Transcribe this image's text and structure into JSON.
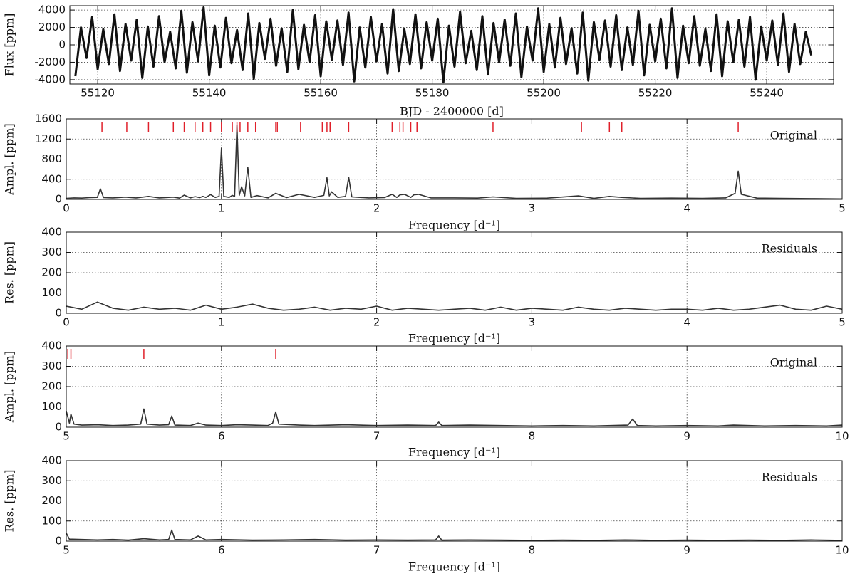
{
  "chart_data": [
    {
      "type": "line",
      "ylabel": "Flux [ppm]",
      "xlabel": "BJD - 2400000 [d]",
      "color": "#111111",
      "grid": true,
      "xlim": [
        55115,
        55252
      ],
      "ylim": [
        -4500,
        4500
      ],
      "xticks": [
        55120,
        55140,
        55160,
        55180,
        55200,
        55220,
        55240
      ],
      "yticks": [
        -4000,
        -2000,
        0,
        2000,
        4000
      ],
      "x": [
        55116,
        55117,
        55118,
        55119,
        55120,
        55121,
        55122,
        55123,
        55124,
        55125,
        55126,
        55127,
        55128,
        55129,
        55130,
        55131,
        55132,
        55133,
        55134,
        55135,
        55136,
        55137,
        55138,
        55139,
        55140,
        55141,
        55142,
        55143,
        55144,
        55145,
        55146,
        55147,
        55148,
        55149,
        55150,
        55151,
        55152,
        55153,
        55154,
        55155,
        55156,
        55157,
        55158,
        55159,
        55160,
        55161,
        55162,
        55163,
        55164,
        55165,
        55166,
        55167,
        55168,
        55169,
        55170,
        55171,
        55172,
        55173,
        55174,
        55175,
        55176,
        55177,
        55178,
        55179,
        55180,
        55181,
        55182,
        55183,
        55184,
        55185,
        55186,
        55187,
        55188,
        55189,
        55190,
        55191,
        55192,
        55193,
        55194,
        55195,
        55196,
        55197,
        55198,
        55199,
        55200,
        55201,
        55202,
        55203,
        55204,
        55205,
        55206,
        55207,
        55208,
        55209,
        55210,
        55211,
        55212,
        55213,
        55214,
        55215,
        55216,
        55217,
        55218,
        55219,
        55220,
        55221,
        55222,
        55223,
        55224,
        55225,
        55226,
        55227,
        55228,
        55229,
        55230,
        55231,
        55232,
        55233,
        55234,
        55235,
        55236,
        55237,
        55238,
        55239,
        55240,
        55241,
        55242,
        55243,
        55244,
        55245,
        55246,
        55247,
        55248
      ],
      "values": [
        -3600,
        2000,
        -1500,
        3200,
        -2800,
        1800,
        -2200,
        3500,
        -3000,
        2400,
        -1800,
        2900,
        -3800,
        2100,
        -2500,
        3300,
        -2000,
        1500,
        -2700,
        3900,
        -3200,
        2600,
        -1900,
        4300,
        -3500,
        2200,
        -2600,
        3100,
        -2100,
        1700,
        -2900,
        3600,
        -3900,
        2500,
        -1600,
        3000,
        -2400,
        1900,
        -3100,
        4000,
        -2800,
        2300,
        -2000,
        3400,
        -3600,
        2700,
        -1700,
        2800,
        -2300,
        3700,
        -4200,
        2000,
        -2600,
        3200,
        -1900,
        2400,
        -3300,
        4100,
        -3000,
        1800,
        -2200,
        3500,
        -2700,
        2600,
        -1800,
        3000,
        -4300,
        2200,
        -2500,
        3800,
        -2100,
        1600,
        -2900,
        3300,
        -3400,
        2500,
        -2000,
        2900,
        -2400,
        3600,
        -3700,
        2100,
        -1800,
        4200,
        -3100,
        2400,
        -2600,
        3100,
        -2200,
        1900,
        -3300,
        3700,
        -4100,
        2600,
        -1700,
        2800,
        -2500,
        3400,
        -2900,
        2000,
        -2300,
        3900,
        -3500,
        2300,
        -1900,
        3000,
        -2700,
        4200,
        -3800,
        2200,
        -2100,
        3300,
        -2400,
        1800,
        -3000,
        3500,
        -3600,
        2700,
        -2000,
        2900,
        -2500,
        3200,
        -4000,
        2100,
        -1800,
        2800,
        -2300,
        3600,
        -3100,
        2400,
        -2200,
        1500,
        -1200
      ]
    },
    {
      "type": "line",
      "ylabel": "Ampl. [ppm]",
      "xlabel": "Frequency [d⁻¹]",
      "annotation": "Original",
      "color": "#333333",
      "grid": true,
      "xlim": [
        0,
        5
      ],
      "ylim": [
        0,
        1600
      ],
      "xticks": [
        0,
        1,
        2,
        3,
        4,
        5
      ],
      "yticks": [
        0,
        400,
        800,
        1200,
        1600
      ],
      "x": [
        0,
        0.05,
        0.1,
        0.15,
        0.2,
        0.22,
        0.24,
        0.3,
        0.38,
        0.45,
        0.53,
        0.6,
        0.69,
        0.73,
        0.76,
        0.8,
        0.83,
        0.86,
        0.88,
        0.9,
        0.93,
        0.96,
        0.985,
        1.0,
        1.015,
        1.05,
        1.07,
        1.085,
        1.1,
        1.115,
        1.13,
        1.15,
        1.17,
        1.19,
        1.23,
        1.3,
        1.35,
        1.42,
        1.5,
        1.6,
        1.66,
        1.68,
        1.695,
        1.71,
        1.75,
        1.8,
        1.82,
        1.84,
        1.95,
        2.05,
        2.1,
        2.13,
        2.15,
        2.18,
        2.22,
        2.24,
        2.27,
        2.35,
        2.5,
        2.65,
        2.75,
        2.9,
        3.1,
        3.3,
        3.4,
        3.5,
        3.58,
        3.7,
        3.9,
        4.1,
        4.25,
        4.31,
        4.33,
        4.35,
        4.45,
        4.6,
        4.8,
        5.0
      ],
      "values": [
        20,
        30,
        25,
        35,
        40,
        210,
        35,
        30,
        45,
        30,
        60,
        30,
        45,
        25,
        85,
        30,
        55,
        35,
        60,
        40,
        95,
        40,
        60,
        1020,
        60,
        40,
        80,
        60,
        1480,
        80,
        250,
        70,
        640,
        40,
        75,
        30,
        120,
        35,
        100,
        40,
        80,
        430,
        70,
        150,
        40,
        60,
        440,
        50,
        30,
        35,
        100,
        40,
        90,
        100,
        40,
        90,
        100,
        30,
        30,
        25,
        50,
        20,
        25,
        70,
        20,
        60,
        40,
        20,
        25,
        20,
        30,
        120,
        560,
        100,
        25,
        20,
        15,
        10
      ],
      "markers": [
        0.23,
        0.39,
        0.53,
        0.69,
        0.76,
        0.83,
        0.88,
        0.93,
        1.0,
        1.07,
        1.1,
        1.12,
        1.17,
        1.22,
        1.35,
        1.36,
        1.51,
        1.65,
        1.68,
        1.7,
        1.82,
        2.1,
        2.15,
        2.17,
        2.22,
        2.26,
        2.75,
        3.32,
        3.5,
        3.58,
        4.33
      ],
      "marker_color": "#e0202a"
    },
    {
      "type": "line",
      "ylabel": "Res. [ppm]",
      "xlabel": "Frequency [d⁻¹]",
      "annotation": "Residuals",
      "color": "#333333",
      "grid": true,
      "xlim": [
        0,
        5
      ],
      "ylim": [
        0,
        400
      ],
      "xticks": [
        0,
        1,
        2,
        3,
        4,
        5
      ],
      "yticks": [
        0,
        100,
        200,
        300,
        400
      ],
      "x": [
        0,
        0.1,
        0.2,
        0.3,
        0.4,
        0.5,
        0.6,
        0.7,
        0.8,
        0.9,
        1.0,
        1.1,
        1.2,
        1.3,
        1.4,
        1.5,
        1.6,
        1.7,
        1.8,
        1.9,
        2.0,
        2.1,
        2.2,
        2.3,
        2.4,
        2.5,
        2.6,
        2.7,
        2.8,
        2.9,
        3.0,
        3.1,
        3.2,
        3.3,
        3.4,
        3.5,
        3.6,
        3.7,
        3.8,
        3.9,
        4.0,
        4.1,
        4.2,
        4.3,
        4.4,
        4.5,
        4.6,
        4.7,
        4.8,
        4.9,
        5.0
      ],
      "values": [
        35,
        20,
        55,
        25,
        15,
        30,
        20,
        25,
        15,
        40,
        20,
        30,
        45,
        25,
        15,
        20,
        30,
        15,
        25,
        20,
        35,
        15,
        25,
        20,
        15,
        20,
        25,
        15,
        30,
        15,
        25,
        20,
        15,
        30,
        20,
        15,
        25,
        20,
        15,
        20,
        20,
        15,
        25,
        15,
        20,
        30,
        40,
        20,
        15,
        35,
        20
      ]
    },
    {
      "type": "line",
      "ylabel": "Ampl. [ppm]",
      "xlabel": "Frequency [d⁻¹]",
      "annotation": "Original",
      "color": "#333333",
      "grid": true,
      "xlim": [
        5,
        10
      ],
      "ylim": [
        0,
        400
      ],
      "xticks": [
        5,
        6,
        7,
        8,
        9,
        10
      ],
      "yticks": [
        0,
        100,
        200,
        300,
        400
      ],
      "x": [
        5.0,
        5.02,
        5.03,
        5.05,
        5.1,
        5.2,
        5.3,
        5.4,
        5.48,
        5.5,
        5.52,
        5.6,
        5.66,
        5.68,
        5.7,
        5.8,
        5.85,
        5.9,
        6.0,
        6.1,
        6.2,
        6.3,
        6.33,
        6.35,
        6.37,
        6.5,
        6.6,
        6.8,
        7.0,
        7.2,
        7.38,
        7.4,
        7.42,
        7.6,
        7.8,
        8.0,
        8.2,
        8.4,
        8.62,
        8.65,
        8.68,
        8.8,
        9.0,
        9.2,
        9.3,
        9.5,
        9.7,
        9.9,
        10.0
      ],
      "values": [
        80,
        20,
        65,
        15,
        10,
        12,
        8,
        10,
        15,
        90,
        15,
        10,
        12,
        55,
        10,
        8,
        20,
        10,
        8,
        12,
        10,
        8,
        20,
        75,
        15,
        10,
        8,
        12,
        8,
        10,
        8,
        25,
        8,
        10,
        8,
        6,
        8,
        6,
        10,
        40,
        8,
        6,
        8,
        6,
        10,
        6,
        8,
        6,
        10
      ],
      "markers": [
        5.01,
        5.03,
        5.5,
        6.35
      ],
      "marker_color": "#e0202a"
    },
    {
      "type": "line",
      "ylabel": "Res. [ppm]",
      "xlabel": "Frequency [d⁻¹]",
      "annotation": "Residuals",
      "color": "#333333",
      "grid": true,
      "xlim": [
        5,
        10
      ],
      "ylim": [
        0,
        400
      ],
      "xticks": [
        5,
        6,
        7,
        8,
        9,
        10
      ],
      "yticks": [
        0,
        100,
        200,
        300,
        400
      ],
      "x": [
        5.0,
        5.02,
        5.1,
        5.2,
        5.3,
        5.4,
        5.5,
        5.6,
        5.66,
        5.68,
        5.7,
        5.8,
        5.85,
        5.9,
        6.0,
        6.2,
        6.4,
        6.6,
        6.8,
        7.0,
        7.2,
        7.38,
        7.4,
        7.42,
        7.6,
        7.8,
        8.0,
        8.2,
        8.4,
        8.6,
        8.8,
        9.0,
        9.2,
        9.4,
        9.6,
        9.8,
        10.0
      ],
      "values": [
        40,
        10,
        8,
        6,
        8,
        5,
        12,
        6,
        8,
        55,
        8,
        6,
        25,
        6,
        8,
        5,
        6,
        8,
        5,
        6,
        5,
        6,
        25,
        5,
        6,
        5,
        4,
        5,
        4,
        6,
        4,
        5,
        4,
        5,
        4,
        6,
        4
      ]
    }
  ]
}
